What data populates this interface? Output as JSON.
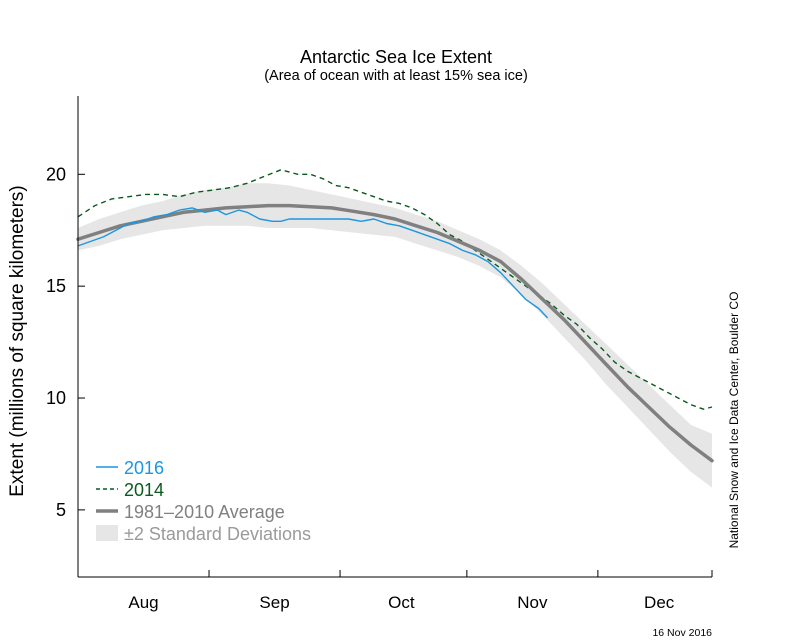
{
  "chart_data": {
    "type": "line",
    "title": "Antarctic Sea Ice Extent",
    "subtitle": "(Area of ocean with at least 15% sea ice)",
    "ylabel": "Extent (millions of square kilometers)",
    "xlabel": "",
    "ylim": [
      2,
      23.5
    ],
    "xlim": [
      0,
      150
    ],
    "yticks": [
      5,
      10,
      15,
      20
    ],
    "month_labels": [
      {
        "label": "Aug",
        "day": 15.5
      },
      {
        "label": "Sep",
        "day": 46.5
      },
      {
        "label": "Oct",
        "day": 76.5
      },
      {
        "label": "Nov",
        "day": 107.5
      },
      {
        "label": "Dec",
        "day": 137.5
      }
    ],
    "month_boundaries": [
      0,
      31,
      62,
      92,
      123,
      150
    ],
    "x_unit": "days since Jul 1",
    "series": [
      {
        "name": "2016",
        "color": "#1a97e0",
        "style": "solid",
        "x": [
          0,
          3,
          6,
          9,
          12,
          15,
          18,
          21,
          24,
          27,
          30,
          33,
          35,
          38,
          40,
          43,
          46,
          48,
          50,
          52,
          55,
          58,
          61,
          64,
          67,
          70,
          73,
          76,
          79,
          82,
          85,
          88,
          91,
          94,
          97,
          100,
          103,
          106,
          109,
          111
        ],
        "y": [
          16.8,
          17.0,
          17.2,
          17.5,
          17.8,
          17.9,
          18.1,
          18.2,
          18.4,
          18.5,
          18.3,
          18.4,
          18.2,
          18.4,
          18.3,
          18.0,
          17.9,
          17.9,
          18.0,
          18.0,
          18.0,
          18.0,
          18.0,
          18.0,
          17.9,
          18.0,
          17.8,
          17.7,
          17.5,
          17.3,
          17.1,
          16.9,
          16.6,
          16.4,
          16.1,
          15.6,
          15.0,
          14.4,
          14.0,
          13.6
        ]
      },
      {
        "name": "2014",
        "color": "#0a5a1e",
        "style": "dashed",
        "x": [
          0,
          4,
          8,
          12,
          16,
          20,
          24,
          28,
          32,
          36,
          40,
          44,
          48,
          52,
          55,
          58,
          61,
          64,
          67,
          70,
          73,
          76,
          79,
          82,
          85,
          88,
          91,
          94,
          97,
          100,
          103,
          106,
          109,
          112,
          115,
          118,
          121,
          124,
          127,
          130,
          133,
          136,
          139,
          142,
          145,
          148,
          150
        ],
        "y": [
          18.1,
          18.6,
          18.9,
          19.0,
          19.1,
          19.1,
          19.0,
          19.2,
          19.3,
          19.4,
          19.6,
          19.9,
          20.2,
          20.0,
          20.0,
          19.8,
          19.5,
          19.4,
          19.2,
          19.0,
          18.8,
          18.7,
          18.5,
          18.2,
          17.8,
          17.3,
          17.0,
          16.6,
          16.2,
          15.8,
          15.4,
          15.0,
          14.6,
          14.2,
          13.7,
          13.3,
          12.7,
          12.2,
          11.6,
          11.2,
          10.9,
          10.6,
          10.3,
          10.0,
          9.7,
          9.5,
          9.6
        ]
      },
      {
        "name": "1981–2010 Average",
        "color": "#808080",
        "style": "thick",
        "x": [
          0,
          5,
          10,
          15,
          20,
          25,
          30,
          35,
          40,
          45,
          50,
          55,
          60,
          65,
          70,
          75,
          80,
          85,
          90,
          95,
          100,
          105,
          110,
          115,
          120,
          125,
          130,
          135,
          140,
          145,
          150
        ],
        "y": [
          17.1,
          17.4,
          17.7,
          17.9,
          18.1,
          18.3,
          18.4,
          18.5,
          18.55,
          18.6,
          18.6,
          18.55,
          18.5,
          18.35,
          18.2,
          18.0,
          17.7,
          17.4,
          17.0,
          16.6,
          16.1,
          15.3,
          14.4,
          13.5,
          12.5,
          11.5,
          10.5,
          9.6,
          8.7,
          7.9,
          7.2
        ]
      }
    ],
    "band": {
      "name": "±2 Standard Deviations",
      "color": "#e6e6e6",
      "x": [
        0,
        5,
        10,
        15,
        20,
        25,
        30,
        35,
        40,
        45,
        50,
        55,
        60,
        65,
        70,
        75,
        80,
        85,
        90,
        95,
        100,
        105,
        110,
        115,
        120,
        125,
        130,
        135,
        140,
        145,
        150
      ],
      "upper": [
        17.6,
        18.0,
        18.3,
        18.6,
        18.8,
        19.1,
        19.3,
        19.4,
        19.6,
        19.6,
        19.5,
        19.3,
        19.1,
        18.9,
        18.7,
        18.5,
        18.2,
        17.9,
        17.5,
        17.1,
        16.6,
        15.9,
        15.1,
        14.2,
        13.3,
        12.4,
        11.5,
        10.6,
        9.7,
        8.8,
        8.4
      ],
      "lower": [
        16.6,
        16.8,
        17.1,
        17.3,
        17.5,
        17.6,
        17.7,
        17.7,
        17.7,
        17.6,
        17.6,
        17.6,
        17.5,
        17.4,
        17.3,
        17.2,
        16.9,
        16.6,
        16.3,
        15.9,
        15.4,
        14.6,
        13.7,
        12.7,
        11.7,
        10.6,
        9.6,
        8.6,
        7.6,
        6.7,
        6.0
      ]
    },
    "legend": [
      {
        "label": "2016",
        "color": "#1a97e0",
        "kind": "solid"
      },
      {
        "label": "2014",
        "color": "#0a5a1e",
        "kind": "dashed"
      },
      {
        "label": "1981–2010 Average",
        "color": "#808080",
        "kind": "thick"
      },
      {
        "label": "±2 Standard Deviations",
        "color": "#9a9a9a",
        "kind": "band"
      }
    ],
    "legend_position": "bottom-left",
    "grid": false
  },
  "credit": "National Snow and Ice Data Center, Boulder CO",
  "date_stamp": "16 Nov 2016"
}
